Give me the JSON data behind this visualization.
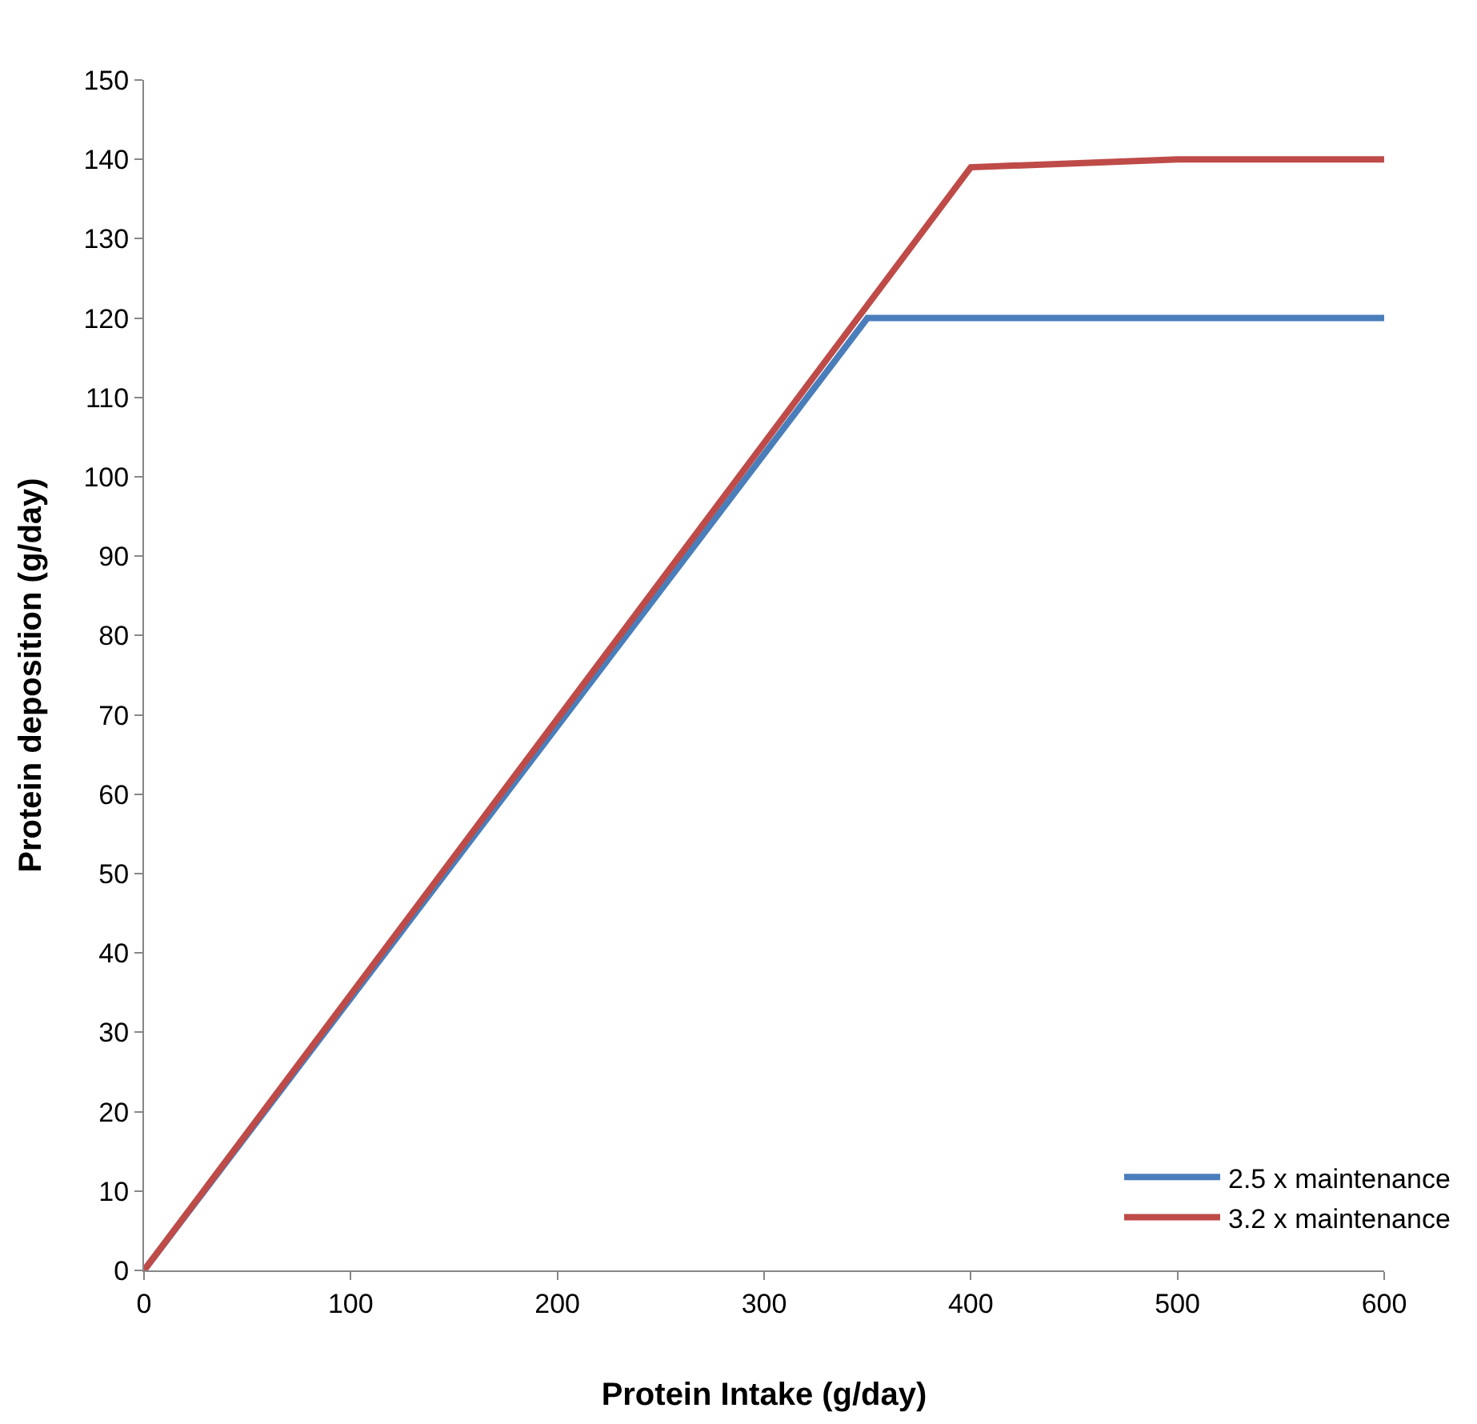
{
  "chart_data": {
    "type": "line",
    "xlabel": "Protein Intake (g/day)",
    "ylabel": "Protein deposition (g/day)",
    "series": [
      {
        "name": "2.5 x maintenance",
        "color": "#4a7ebb",
        "x": [
          0,
          350,
          400,
          500,
          600
        ],
        "values": [
          0,
          120,
          120,
          120,
          120
        ]
      },
      {
        "name": "3.2 x maintenance",
        "color": "#be4b48",
        "x": [
          0,
          400,
          500,
          600
        ],
        "values": [
          0,
          139,
          140,
          140
        ]
      }
    ],
    "xlim": [
      0,
      600
    ],
    "xticks": [
      0,
      100,
      200,
      300,
      400,
      500,
      600
    ],
    "ylim": [
      0,
      150
    ],
    "yticks": [
      0,
      10,
      20,
      30,
      40,
      50,
      60,
      70,
      80,
      90,
      100,
      110,
      120,
      130,
      140,
      150
    ],
    "legend": "bottom right",
    "marker": "none",
    "line_style": "solid"
  }
}
